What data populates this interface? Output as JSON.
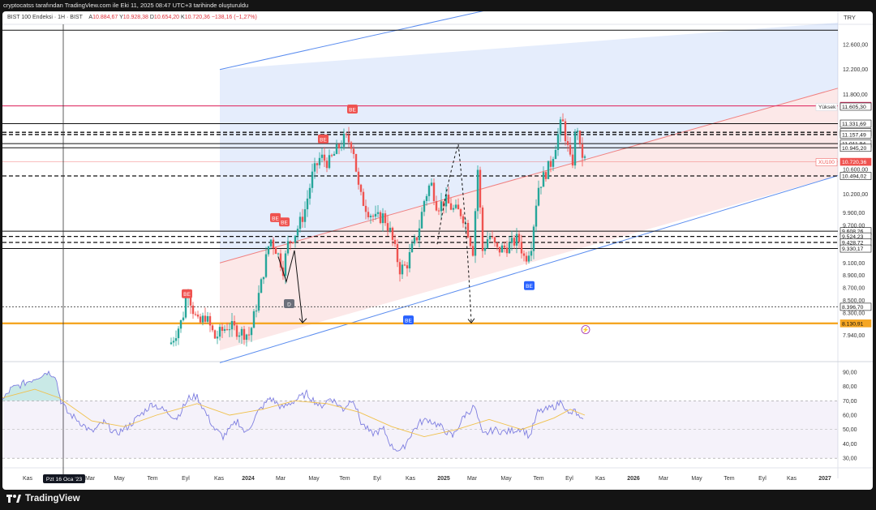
{
  "top_attribution": "cryptocatss tarafından TradingView.com ile Eki 11, 2025 08:47 UTC+3 tarihinde oluşturuldu",
  "legend": {
    "symbol": "BIST 100 Endeksi · 1H · BIST",
    "o_label": "A",
    "o": "10.884,67",
    "h_label": "Y",
    "h": "10.928,38",
    "l_label": "D",
    "l": "10.654,20",
    "c_label": "K",
    "c": "10.720,36",
    "change": "−138,16 (−1,27%)"
  },
  "currency": "TRY",
  "footer_brand": "TradingView",
  "colors": {
    "up": "#26a69a",
    "down": "#ef5350",
    "channel_blue": "#5b8def",
    "channel_red": "#f08080",
    "orange": "#f5a623",
    "magenta": "#e0356a",
    "rsi": "#7e7ee0",
    "rsi_ma": "#f0c14b"
  },
  "chart_data": {
    "type": "candlestick",
    "timeframe": "1H",
    "y_ticks": [
      "12.600,00",
      "12.200,00",
      "11.800,00",
      "10.600,00",
      "10.200,00",
      "9.900,00",
      "9.700,00",
      "9.100,00",
      "8.900,00",
      "8.700,00",
      "8.500,00",
      "8.300,00",
      "7.940,00"
    ],
    "ylim": [
      7700,
      12950
    ],
    "x_ticks": [
      "Kas",
      "Mar",
      "May",
      "Tem",
      "Eyl",
      "Kas",
      "2024",
      "Mar",
      "May",
      "Tem",
      "Eyl",
      "Kas",
      "2025",
      "Mar",
      "May",
      "Tem",
      "Eyl",
      "Kas",
      "2026",
      "Mar",
      "May",
      "Tem",
      "Eyl",
      "Kas",
      "2027"
    ],
    "crosshair_date": "Pzt 16 Oca '23",
    "price_labels": [
      {
        "value": "11.617,10",
        "style": "magenta"
      },
      {
        "value": "Yüksek",
        "style": "tag"
      },
      {
        "value": "11.605,30",
        "style": "plain"
      },
      {
        "value": "11.331,69",
        "style": "plain"
      },
      {
        "value": "11.193,04",
        "style": "plain"
      },
      {
        "value": "11.157,49",
        "style": "plain"
      },
      {
        "value": "11.011,94",
        "style": "plain"
      },
      {
        "value": "10.945,20",
        "style": "plain"
      },
      {
        "value": "XU100",
        "style": "tag-red"
      },
      {
        "value": "10.720,36",
        "style": "red"
      },
      {
        "value": "10.494,02",
        "style": "plain"
      },
      {
        "value": "9.608,26",
        "style": "plain"
      },
      {
        "value": "9.524,23",
        "style": "plain"
      },
      {
        "value": "9.428,72",
        "style": "plain"
      },
      {
        "value": "9.330,17",
        "style": "plain"
      },
      {
        "value": "8.396,70",
        "style": "plain"
      },
      {
        "value": "8.130,91",
        "style": "orange"
      }
    ],
    "levels": [
      {
        "value": 11617.1,
        "style": "magenta"
      },
      {
        "value": 11331.69,
        "style": "solid"
      },
      {
        "value": 11193.04,
        "style": "dashed"
      },
      {
        "value": 11157.49,
        "style": "dashed"
      },
      {
        "value": 11011.94,
        "style": "solid"
      },
      {
        "value": 10945.2,
        "style": "solid"
      },
      {
        "value": 10494.02,
        "style": "dashed"
      },
      {
        "value": 9608.26,
        "style": "solid"
      },
      {
        "value": 9524.23,
        "style": "dashed"
      },
      {
        "value": 9428.72,
        "style": "dashed"
      },
      {
        "value": 9330.17,
        "style": "solid"
      },
      {
        "value": 8396.7,
        "style": "dotted"
      },
      {
        "value": 8130.91,
        "style": "orange"
      }
    ],
    "markers": [
      {
        "label": "BE",
        "type": "sell"
      },
      {
        "label": "BE",
        "type": "sell"
      },
      {
        "label": "BE",
        "type": "sell"
      },
      {
        "label": "BE",
        "type": "sell"
      },
      {
        "label": "BE",
        "type": "sell"
      },
      {
        "label": "BE",
        "type": "buy"
      },
      {
        "label": "BE",
        "type": "buy"
      },
      {
        "label": "D",
        "type": "neutral"
      }
    ],
    "rsi": {
      "y_ticks": [
        "90,00",
        "80,00",
        "70,00",
        "60,00",
        "50,00",
        "40,00",
        "30,00"
      ],
      "ylim": [
        25,
        95
      ],
      "band": [
        30,
        70
      ]
    }
  }
}
